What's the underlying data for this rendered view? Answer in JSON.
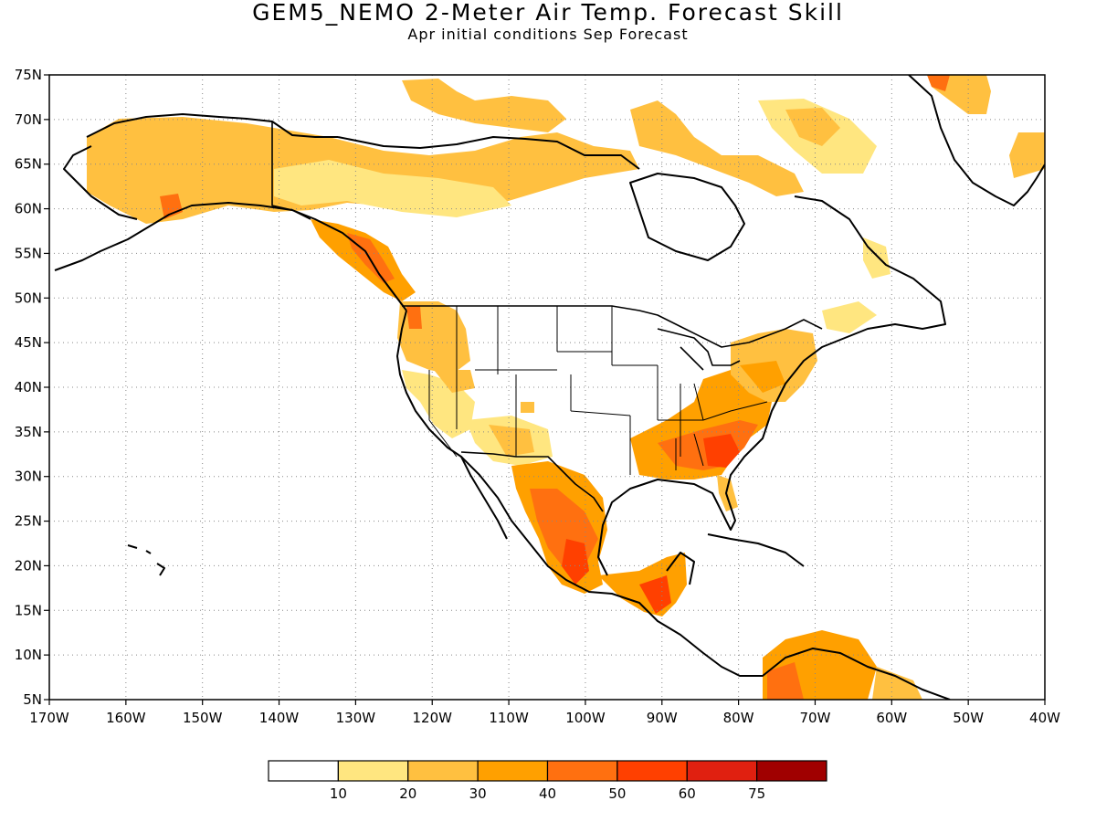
{
  "title": "GEM5_NEMO 2-Meter Air Temp. Forecast Skill",
  "subtitle": "Apr initial conditions  Sep Forecast",
  "map": {
    "lon_labels": [
      "170W",
      "160W",
      "150W",
      "140W",
      "130W",
      "120W",
      "110W",
      "100W",
      "90W",
      "80W",
      "70W",
      "60W",
      "50W",
      "40W"
    ],
    "lat_labels": [
      "75N",
      "70N",
      "65N",
      "60N",
      "55N",
      "50N",
      "45N",
      "40N",
      "35N",
      "30N",
      "25N",
      "20N",
      "15N",
      "10N",
      "5N"
    ],
    "lon_range": [
      -170,
      -40
    ],
    "lat_range": [
      5,
      75
    ],
    "grid": "dotted"
  },
  "colorbar": {
    "labels": [
      "10",
      "20",
      "30",
      "40",
      "50",
      "60",
      "75"
    ],
    "colors": [
      "#ffffff",
      "#ffe680",
      "#ffc040",
      "#ffa000",
      "#ff7010",
      "#ff4000",
      "#e02010",
      "#a00000"
    ]
  },
  "shading": [
    {
      "name": "alaska-yukon-band",
      "level": 2
    },
    {
      "name": "alaska-south-coast",
      "level": 4
    },
    {
      "name": "arctic-archipelago",
      "level": 1
    },
    {
      "name": "bc-coast",
      "level": 4
    },
    {
      "name": "pacific-northwest",
      "level": 2
    },
    {
      "name": "great-basin",
      "level": 1
    },
    {
      "name": "southwest",
      "level": 2
    },
    {
      "name": "southeast-us",
      "level": 4
    },
    {
      "name": "northeast-us",
      "level": 3
    },
    {
      "name": "mexico",
      "level": 5
    },
    {
      "name": "central-america",
      "level": 5
    },
    {
      "name": "northern-south-america",
      "level": 4
    },
    {
      "name": "greenland-east",
      "level": 2
    },
    {
      "name": "labrador",
      "level": 1
    }
  ]
}
